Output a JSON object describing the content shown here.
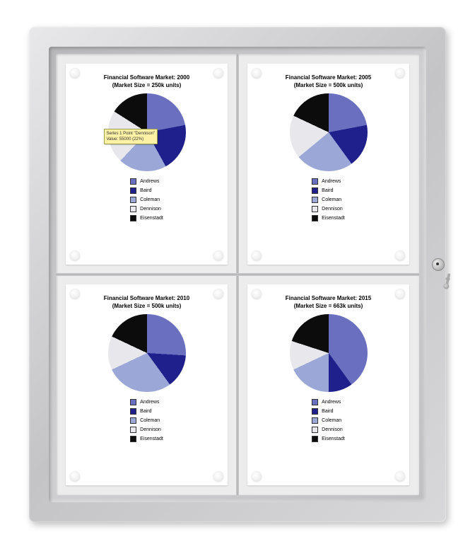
{
  "frame": {
    "outer_w": 590,
    "outer_h": 700,
    "outer_gradient": [
      "#e8e8ea",
      "#c4c4c6",
      "#d8d8da"
    ],
    "bevel_gradient": [
      "#b8b8ba",
      "#d0d0d2",
      "#c0c0c2"
    ],
    "inner_color": "#ececec",
    "pin_color": "#ffffff",
    "pins_per_sheet": 4
  },
  "legend_labels": [
    "Andrews",
    "Baird",
    "Coleman",
    "Dennison",
    "Eisenstadt"
  ],
  "legend_colors": [
    "#6a6fbf",
    "#20208d",
    "#9aa7d7",
    "#e8e8ec",
    "#0c0c0c"
  ],
  "charts": [
    {
      "title_line1": "Financial Software Market: 2000",
      "title_line2": "(Market Size = 250k units)",
      "type": "pie",
      "slices": [
        {
          "label": "Andrews",
          "value": 22,
          "color": "#6a6fbf"
        },
        {
          "label": "Baird",
          "value": 20,
          "color": "#20208d"
        },
        {
          "label": "Coleman",
          "value": 20,
          "color": "#9aa7d7"
        },
        {
          "label": "Dennison",
          "value": 22,
          "color": "#e8e8ec"
        },
        {
          "label": "Eisenstadt",
          "value": 16,
          "color": "#0c0c0c"
        }
      ],
      "start_angle_deg": 0,
      "title_fontsize": 8,
      "tooltip": {
        "text": "Series 1 Point \"Dennison\"\nValue: 55000 (22%)",
        "visible": true
      }
    },
    {
      "title_line1": "Financial Software Market: 2005",
      "title_line2": "(Market Size = 500k units)",
      "type": "pie",
      "slices": [
        {
          "label": "Andrews",
          "value": 22,
          "color": "#6a6fbf"
        },
        {
          "label": "Baird",
          "value": 18,
          "color": "#20208d"
        },
        {
          "label": "Coleman",
          "value": 24,
          "color": "#9aa7d7"
        },
        {
          "label": "Dennison",
          "value": 18,
          "color": "#e8e8ec"
        },
        {
          "label": "Eisenstadt",
          "value": 18,
          "color": "#0c0c0c"
        }
      ],
      "start_angle_deg": 0,
      "title_fontsize": 8
    },
    {
      "title_line1": "Financial Software Market: 2010",
      "title_line2": "(Market Size = 500k units)",
      "type": "pie",
      "slices": [
        {
          "label": "Andrews",
          "value": 26,
          "color": "#6a6fbf"
        },
        {
          "label": "Baird",
          "value": 14,
          "color": "#20208d"
        },
        {
          "label": "Coleman",
          "value": 28,
          "color": "#9aa7d7"
        },
        {
          "label": "Dennison",
          "value": 14,
          "color": "#e8e8ec"
        },
        {
          "label": "Eisenstadt",
          "value": 18,
          "color": "#0c0c0c"
        }
      ],
      "start_angle_deg": 0,
      "title_fontsize": 8
    },
    {
      "title_line1": "Financial Software Market: 2015",
      "title_line2": "(Market Size = 663k units)",
      "type": "pie",
      "slices": [
        {
          "label": "Andrews",
          "value": 40,
          "color": "#6a6fbf"
        },
        {
          "label": "Baird",
          "value": 10,
          "color": "#20208d"
        },
        {
          "label": "Coleman",
          "value": 18,
          "color": "#9aa7d7"
        },
        {
          "label": "Dennison",
          "value": 12,
          "color": "#e8e8ec"
        },
        {
          "label": "Eisenstadt",
          "value": 20,
          "color": "#0c0c0c"
        }
      ],
      "start_angle_deg": 0,
      "title_fontsize": 8
    }
  ]
}
